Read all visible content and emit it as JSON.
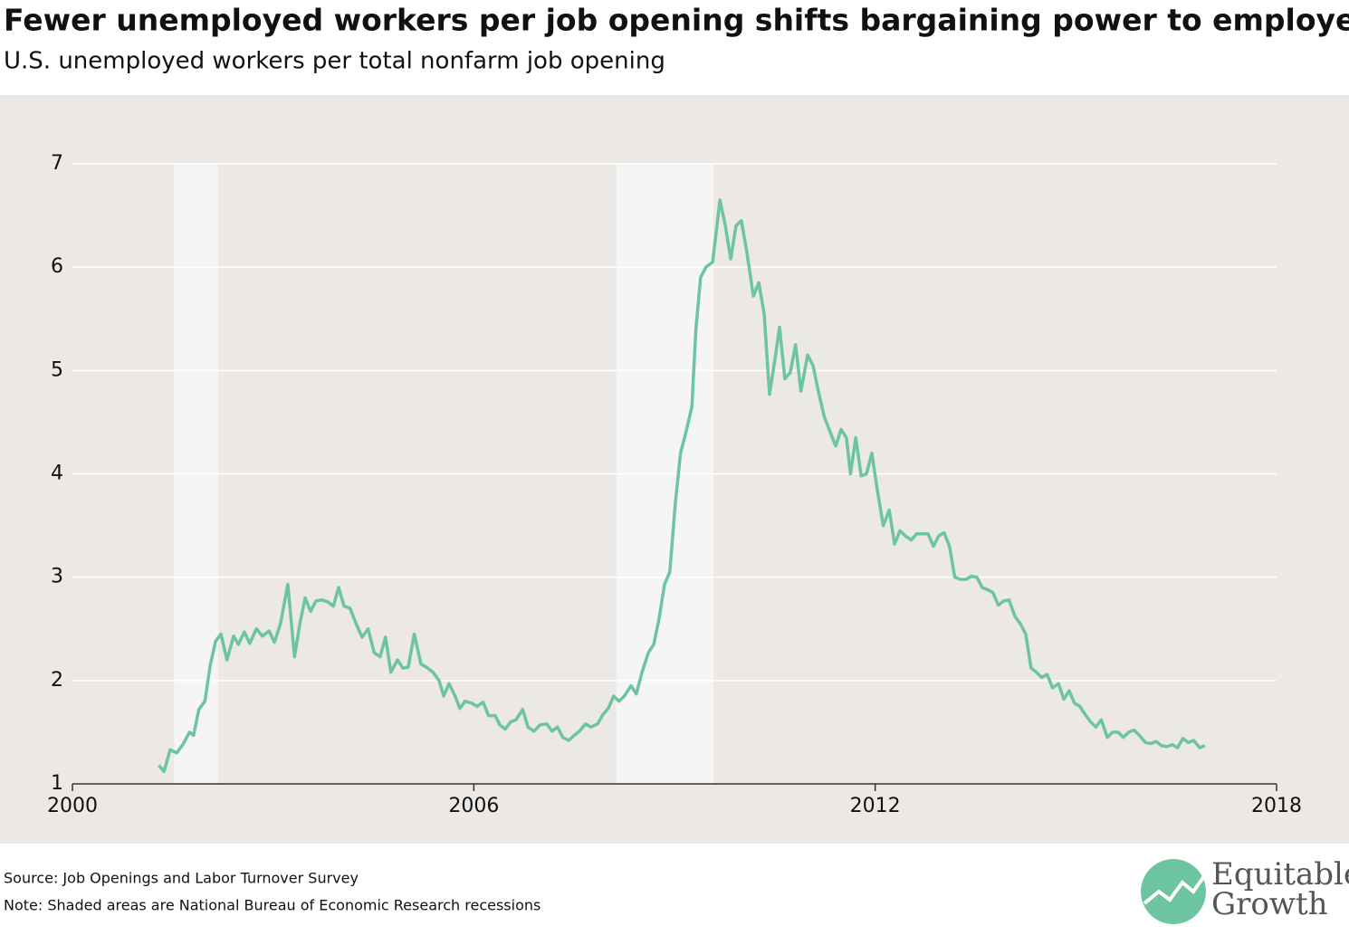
{
  "chart_data": {
    "type": "line",
    "title": "Fewer unemployed workers per job opening shifts bargaining power to employees",
    "subtitle": "U.S. unemployed workers per total nonfarm job opening",
    "source": "Source: Job Openings and Labor Turnover Survey",
    "note": "Note: Shaded areas are National Bureau of Economic Research recessions",
    "brand": {
      "line1": "Equitable",
      "line2": "Growth"
    },
    "xlim": [
      2000,
      2018
    ],
    "xticks": [
      2000,
      2006,
      2012,
      2018
    ],
    "ylim": [
      1,
      7
    ],
    "yticks": [
      1,
      2,
      3,
      4,
      5,
      6,
      7
    ],
    "grid": true,
    "recessions": [
      [
        2001.52,
        2002.18
      ],
      [
        2008.13,
        2009.58
      ]
    ],
    "recession_color": "#f6f5f5",
    "x": [
      2001.29,
      2001.37,
      2001.46,
      2001.56,
      2001.65,
      2001.75,
      2001.81,
      2001.89,
      2001.98,
      2002.06,
      2002.14,
      2002.22,
      2002.31,
      2002.41,
      2002.48,
      2002.57,
      2002.65,
      2002.75,
      2002.84,
      2002.94,
      2003.02,
      2003.11,
      2003.22,
      2003.32,
      2003.4,
      2003.48,
      2003.56,
      2003.64,
      2003.73,
      2003.82,
      2003.9,
      2003.98,
      2004.06,
      2004.15,
      2004.24,
      2004.33,
      2004.42,
      2004.51,
      2004.6,
      2004.68,
      2004.76,
      2004.86,
      2004.94,
      2005.02,
      2005.11,
      2005.21,
      2005.29,
      2005.39,
      2005.48,
      2005.55,
      2005.63,
      2005.72,
      2005.79,
      2005.87,
      2005.97,
      2006.05,
      2006.14,
      2006.22,
      2006.32,
      2006.39,
      2006.47,
      2006.55,
      2006.63,
      2006.73,
      2006.81,
      2006.9,
      2006.99,
      2007.09,
      2007.17,
      2007.25,
      2007.33,
      2007.42,
      2007.5,
      2007.58,
      2007.67,
      2007.75,
      2007.85,
      2007.93,
      2008.01,
      2008.09,
      2008.17,
      2008.25,
      2008.35,
      2008.43,
      2008.51,
      2008.61,
      2008.69,
      2008.77,
      2008.85,
      2008.93,
      2009.01,
      2009.09,
      2009.17,
      2009.26,
      2009.32,
      2009.39,
      2009.47,
      2009.57,
      2009.68,
      2009.76,
      2009.84,
      2009.92,
      2010.0,
      2010.08,
      2010.18,
      2010.26,
      2010.34,
      2010.42,
      2010.5,
      2010.57,
      2010.65,
      2010.73,
      2010.81,
      2010.89,
      2010.99,
      2011.07,
      2011.15,
      2011.24,
      2011.33,
      2011.41,
      2011.49,
      2011.57,
      2011.63,
      2011.71,
      2011.79,
      2011.87,
      2011.95,
      2012.03,
      2012.12,
      2012.21,
      2012.29,
      2012.37,
      2012.45,
      2012.54,
      2012.62,
      2012.71,
      2012.79,
      2012.87,
      2012.95,
      2013.03,
      2013.11,
      2013.19,
      2013.27,
      2013.36,
      2013.44,
      2013.52,
      2013.6,
      2013.68,
      2013.76,
      2013.84,
      2013.92,
      2014.0,
      2014.09,
      2014.17,
      2014.25,
      2014.33,
      2014.41,
      2014.49,
      2014.57,
      2014.65,
      2014.74,
      2014.82,
      2014.9,
      2014.98,
      2015.06,
      2015.14,
      2015.22,
      2015.3,
      2015.38,
      2015.47,
      2015.55,
      2015.63,
      2015.71,
      2015.79,
      2015.87,
      2015.95,
      2016.04,
      2016.12,
      2016.2,
      2016.28,
      2016.36,
      2016.44,
      2016.52,
      2016.6,
      2016.68,
      2016.76,
      2016.85,
      2016.93
    ],
    "series": [
      {
        "color": "#6cc4a1",
        "values": [
          1.18,
          1.12,
          1.33,
          1.3,
          1.38,
          1.5,
          1.47,
          1.72,
          1.8,
          2.15,
          2.38,
          2.45,
          2.2,
          2.43,
          2.35,
          2.47,
          2.36,
          2.5,
          2.43,
          2.48,
          2.37,
          2.55,
          2.93,
          2.23,
          2.55,
          2.8,
          2.67,
          2.77,
          2.78,
          2.76,
          2.72,
          2.9,
          2.72,
          2.7,
          2.55,
          2.42,
          2.5,
          2.27,
          2.23,
          2.42,
          2.08,
          2.2,
          2.12,
          2.13,
          2.45,
          2.16,
          2.13,
          2.08,
          2.0,
          1.85,
          1.97,
          1.85,
          1.73,
          1.8,
          1.78,
          1.75,
          1.79,
          1.66,
          1.66,
          1.57,
          1.53,
          1.6,
          1.62,
          1.72,
          1.55,
          1.51,
          1.57,
          1.58,
          1.51,
          1.55,
          1.45,
          1.42,
          1.47,
          1.51,
          1.58,
          1.55,
          1.58,
          1.67,
          1.73,
          1.85,
          1.8,
          1.85,
          1.95,
          1.87,
          2.07,
          2.27,
          2.35,
          2.6,
          2.93,
          3.05,
          3.7,
          4.2,
          4.4,
          4.65,
          5.4,
          5.9,
          6.0,
          6.05,
          6.65,
          6.4,
          6.08,
          6.4,
          6.45,
          6.15,
          5.72,
          5.85,
          5.55,
          4.77,
          5.1,
          5.42,
          4.92,
          4.98,
          5.25,
          4.8,
          5.15,
          5.05,
          4.8,
          4.55,
          4.4,
          4.27,
          4.43,
          4.35,
          4.0,
          4.35,
          3.98,
          4.0,
          4.2,
          3.85,
          3.5,
          3.65,
          3.32,
          3.45,
          3.4,
          3.36,
          3.42,
          3.42,
          3.42,
          3.3,
          3.4,
          3.43,
          3.3,
          3.0,
          2.98,
          2.98,
          3.01,
          3.0,
          2.9,
          2.88,
          2.85,
          2.73,
          2.77,
          2.78,
          2.62,
          2.55,
          2.45,
          2.12,
          2.08,
          2.03,
          2.06,
          1.93,
          1.97,
          1.82,
          1.9,
          1.78,
          1.75,
          1.67,
          1.6,
          1.55,
          1.62,
          1.45,
          1.5,
          1.5,
          1.45,
          1.5,
          1.52,
          1.47,
          1.4,
          1.39,
          1.41,
          1.37,
          1.36,
          1.38,
          1.35,
          1.44,
          1.4,
          1.42,
          1.35,
          1.37
        ]
      }
    ]
  }
}
